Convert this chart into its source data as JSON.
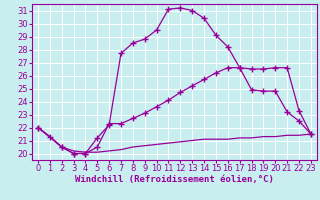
{
  "xlabel": "Windchill (Refroidissement éolien,°C)",
  "bg_color": "#c8eef0",
  "line_color": "#990099",
  "grid_color": "#ffffff",
  "xlim": [
    -0.5,
    23.5
  ],
  "ylim": [
    19.5,
    31.5
  ],
  "xticks": [
    0,
    1,
    2,
    3,
    4,
    5,
    6,
    7,
    8,
    9,
    10,
    11,
    12,
    13,
    14,
    15,
    16,
    17,
    18,
    19,
    20,
    21,
    22,
    23
  ],
  "yticks": [
    20,
    21,
    22,
    23,
    24,
    25,
    26,
    27,
    28,
    29,
    30,
    31
  ],
  "curve1_x": [
    0,
    1,
    2,
    3,
    4,
    5,
    6,
    7,
    8,
    9,
    10,
    11,
    12,
    13,
    14,
    15,
    16,
    17,
    18,
    19,
    20,
    21,
    22,
    23
  ],
  "curve1_y": [
    22.0,
    21.3,
    20.5,
    20.0,
    20.0,
    21.2,
    22.2,
    27.7,
    28.5,
    28.8,
    29.5,
    31.1,
    31.2,
    31.0,
    30.4,
    29.1,
    28.2,
    26.6,
    24.9,
    24.8,
    24.8,
    23.2,
    22.5,
    21.5
  ],
  "curve2_x": [
    0,
    2,
    3,
    4,
    5,
    6,
    7,
    8,
    9,
    10,
    11,
    12,
    13,
    14,
    15,
    16,
    17,
    18,
    19,
    20,
    21,
    22,
    23
  ],
  "curve2_y": [
    22.0,
    20.5,
    20.0,
    20.0,
    20.5,
    22.3,
    22.3,
    22.7,
    23.1,
    23.6,
    24.1,
    24.7,
    25.2,
    25.7,
    26.2,
    26.6,
    26.6,
    26.5,
    26.5,
    26.6,
    26.6,
    23.3,
    21.5
  ],
  "curve3_x": [
    0,
    1,
    2,
    3,
    4,
    5,
    6,
    7,
    8,
    9,
    10,
    11,
    12,
    13,
    14,
    15,
    16,
    17,
    18,
    19,
    20,
    21,
    22,
    23
  ],
  "curve3_y": [
    22.0,
    21.3,
    20.5,
    20.2,
    20.1,
    20.1,
    20.2,
    20.3,
    20.5,
    20.6,
    20.7,
    20.8,
    20.9,
    21.0,
    21.1,
    21.1,
    21.1,
    21.2,
    21.2,
    21.3,
    21.3,
    21.4,
    21.4,
    21.5
  ],
  "marker": "+",
  "marker_size": 4,
  "line_width": 0.9,
  "font_size_tick": 6,
  "font_size_xlabel": 6.5
}
